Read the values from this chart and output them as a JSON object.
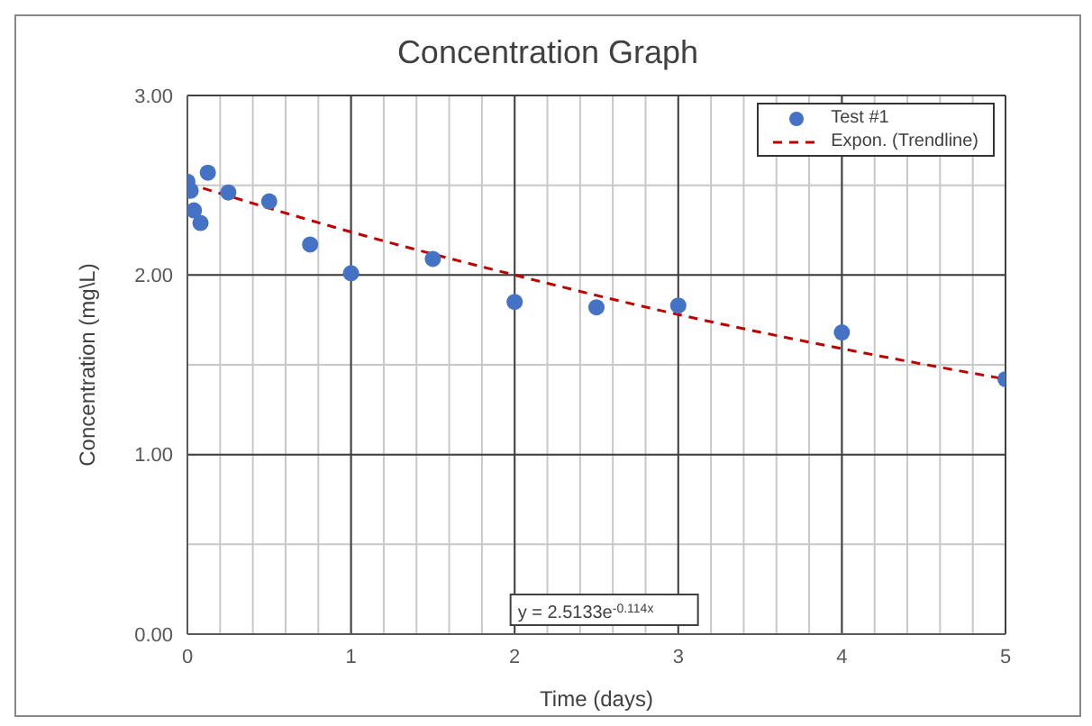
{
  "chart_data": {
    "type": "scatter",
    "title": "Concentration Graph",
    "xlabel": "Time (days)",
    "ylabel": "Concentration (mg\\L)",
    "xlim": [
      0,
      5
    ],
    "xticks": [
      0,
      {
        "value": 0.2,
        "label": null
      },
      {
        "value": 0.4,
        "label": null
      },
      {
        "value": 0.6,
        "label": null
      },
      {
        "value": 0.8,
        "label": null
      },
      1,
      {
        "value": 1.2,
        "label": null
      },
      {
        "value": 1.4,
        "label": null
      },
      {
        "value": 1.6,
        "label": null
      },
      {
        "value": 1.8,
        "label": null
      },
      2,
      {
        "value": 2.2,
        "label": null
      },
      {
        "value": 2.4,
        "label": null
      },
      {
        "value": 2.6,
        "label": null
      },
      {
        "value": 2.8,
        "label": null
      },
      3,
      {
        "value": 3.2,
        "label": null
      },
      {
        "value": 3.4,
        "label": null
      },
      {
        "value": 3.6,
        "label": null
      },
      {
        "value": 3.8,
        "label": null
      },
      4,
      {
        "value": 4.2,
        "label": null
      },
      {
        "value": 4.4,
        "label": null
      },
      {
        "value": 4.6,
        "label": null
      },
      {
        "value": 4.8,
        "label": null
      },
      5
    ],
    "ylim": [
      0,
      3
    ],
    "yticks": [
      {
        "value": 0,
        "label": "0.00"
      },
      {
        "value": 0.5,
        "label": null
      },
      {
        "value": 1,
        "label": "1.00"
      },
      {
        "value": 1.5,
        "label": null
      },
      {
        "value": 2,
        "label": "2.00"
      },
      {
        "value": 2.5,
        "label": null
      },
      {
        "value": 3,
        "label": "3.00"
      }
    ],
    "grid": true,
    "legend": "top right",
    "marker": "circle",
    "series": [
      {
        "name": "Test #1",
        "color": "#4472c4",
        "x": [
          0,
          0.02,
          0.04,
          0.08,
          0.125,
          0.25,
          0.5,
          0.75,
          1,
          1.5,
          2,
          2.5,
          3,
          4,
          5
        ],
        "values": [
          2.52,
          2.47,
          2.36,
          2.29,
          2.57,
          2.46,
          2.41,
          2.17,
          2.01,
          2.09,
          1.85,
          1.82,
          1.83,
          1.68,
          1.42
        ]
      },
      {
        "name": "Expon. (Trendline)",
        "type": "line",
        "color": "#c00000",
        "line_style": "dashed",
        "marker": "none",
        "x": [
          0,
          1,
          2,
          3,
          4,
          5
        ],
        "values": [
          2.51,
          2.24,
          2.0,
          1.78,
          1.59,
          1.42
        ]
      }
    ],
    "annotations": [
      "y = 2.5133e$^{-0.114x}$"
    ]
  }
}
